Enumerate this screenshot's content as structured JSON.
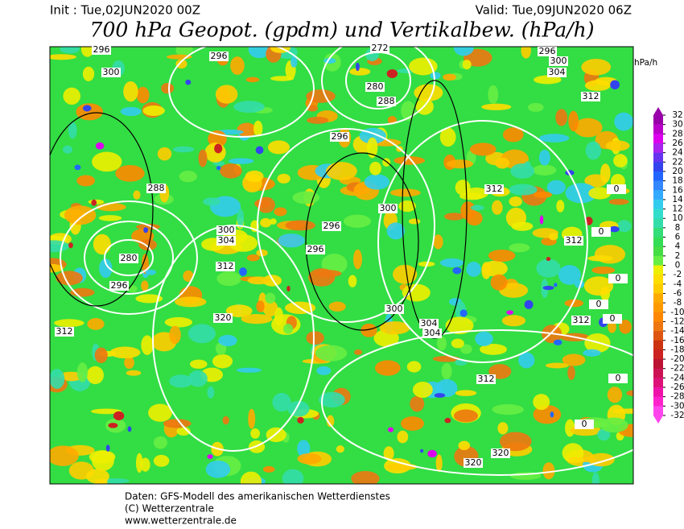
{
  "header": {
    "init": "Init : Tue,02JUN2020 00Z",
    "valid": "Valid: Tue,09JUN2020 06Z",
    "title": "700 hPa Geopot. (gpdm) und Vertikalbew. (hPa/h)"
  },
  "colorbar": {
    "unit": "hPa/h",
    "ticks": [
      32,
      30,
      28,
      26,
      24,
      22,
      20,
      18,
      16,
      14,
      12,
      10,
      8,
      6,
      4,
      2,
      0,
      -2,
      -4,
      -6,
      -8,
      -10,
      -12,
      -14,
      -16,
      -18,
      -20,
      -22,
      -24,
      -26,
      -28,
      -30,
      -32
    ],
    "colors": [
      "#9900aa",
      "#bb00cc",
      "#dd00ee",
      "#aa22ee",
      "#6633ee",
      "#3344ee",
      "#2266ff",
      "#3388ff",
      "#33aaff",
      "#33ccee",
      "#33ddcc",
      "#33ddaa",
      "#33dd77",
      "#33dd55",
      "#44dd44",
      "#66ee44",
      "#eeee00",
      "#ffdd00",
      "#ffcc00",
      "#ffaa00",
      "#ff9900",
      "#ff8800",
      "#ee7711",
      "#dd5511",
      "#cc3311",
      "#cc2222",
      "#bb1133",
      "#cc1155",
      "#dd1177",
      "#ee11aa",
      "#ff22cc",
      "#ff44ee"
    ]
  },
  "contour_labels": [
    "296",
    "300",
    "296",
    "272",
    "296",
    "300",
    "304",
    "280",
    "288",
    "312",
    "296",
    "288",
    "312",
    "300",
    "296",
    "300",
    "304",
    "312",
    "296",
    "280",
    "312",
    "296",
    "300",
    "320",
    "304",
    "304",
    "312",
    "312",
    "312",
    "320",
    "320",
    "0",
    "0",
    "0",
    "0",
    "0",
    "0",
    "0"
  ],
  "footer": [
    "Daten: GFS-Modell des amerikanischen Wetterdienstes",
    "(C) Wetterzentrale",
    "www.wetterzentrale.de"
  ]
}
